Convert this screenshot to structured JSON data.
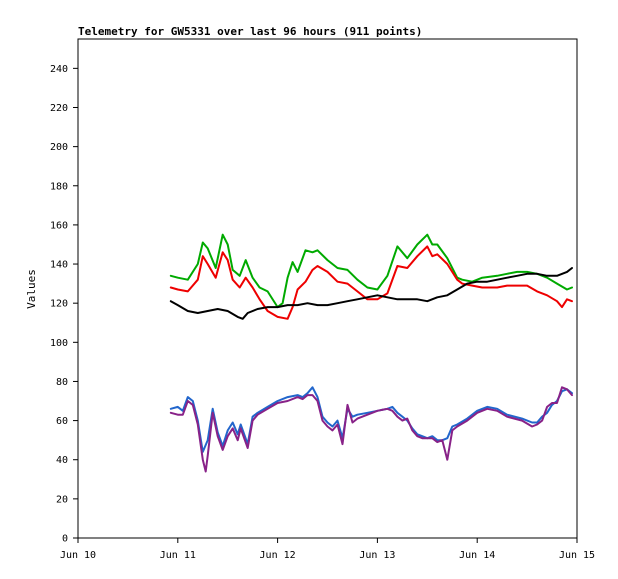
{
  "chart_data": {
    "type": "line",
    "title": "Telemetry for GW5331 over last 96 hours (911 points)",
    "xlabel": "",
    "ylabel": "Values",
    "x_ticks": [
      "Jun 10",
      "Jun 11",
      "Jun 12",
      "Jun 13",
      "Jun 14",
      "Jun 15"
    ],
    "xlim": [
      0,
      5
    ],
    "ylim": [
      0,
      255
    ],
    "y_ticks": [
      0,
      20,
      40,
      60,
      80,
      100,
      120,
      140,
      160,
      180,
      200,
      220,
      240
    ],
    "grid": false,
    "legend": "none",
    "series": [
      {
        "color": "#00aa00",
        "x": [
          0.93,
          1.0,
          1.1,
          1.2,
          1.25,
          1.3,
          1.38,
          1.45,
          1.5,
          1.55,
          1.62,
          1.68,
          1.75,
          1.82,
          1.9,
          2.0,
          2.05,
          2.1,
          2.15,
          2.2,
          2.28,
          2.35,
          2.4,
          2.5,
          2.6,
          2.7,
          2.8,
          2.9,
          3.0,
          3.1,
          3.2,
          3.3,
          3.4,
          3.5,
          3.55,
          3.6,
          3.7,
          3.8,
          3.85,
          3.95,
          4.05,
          4.2,
          4.3,
          4.4,
          4.5,
          4.6,
          4.7,
          4.8,
          4.9,
          4.95
        ],
        "y": [
          134,
          133,
          132,
          140,
          151,
          148,
          138,
          155,
          150,
          137,
          134,
          142,
          133,
          128,
          126,
          118,
          120,
          133,
          141,
          136,
          147,
          146,
          147,
          142,
          138,
          137,
          132,
          128,
          127,
          134,
          149,
          143,
          150,
          155,
          150,
          150,
          143,
          133,
          132,
          131,
          133,
          134,
          135,
          136,
          136,
          135,
          133,
          130,
          127,
          128
        ]
      },
      {
        "color": "#ee0000",
        "x": [
          0.93,
          1.0,
          1.1,
          1.2,
          1.25,
          1.3,
          1.38,
          1.45,
          1.5,
          1.55,
          1.62,
          1.68,
          1.75,
          1.82,
          1.9,
          2.0,
          2.1,
          2.15,
          2.2,
          2.28,
          2.35,
          2.4,
          2.5,
          2.6,
          2.7,
          2.8,
          2.9,
          3.0,
          3.1,
          3.2,
          3.3,
          3.4,
          3.5,
          3.55,
          3.6,
          3.7,
          3.8,
          3.85,
          3.95,
          4.05,
          4.2,
          4.3,
          4.4,
          4.5,
          4.6,
          4.7,
          4.8,
          4.85,
          4.9,
          4.95
        ],
        "y": [
          128,
          127,
          126,
          132,
          144,
          140,
          133,
          146,
          142,
          132,
          128,
          133,
          128,
          122,
          116,
          113,
          112,
          118,
          127,
          131,
          137,
          139,
          136,
          131,
          130,
          126,
          122,
          122,
          125,
          139,
          138,
          144,
          149,
          144,
          145,
          140,
          132,
          130,
          129,
          128,
          128,
          129,
          129,
          129,
          126,
          124,
          121,
          118,
          122,
          121
        ]
      },
      {
        "color": "#000000",
        "x": [
          0.93,
          1.0,
          1.1,
          1.2,
          1.3,
          1.4,
          1.5,
          1.6,
          1.65,
          1.7,
          1.8,
          1.9,
          2.0,
          2.1,
          2.2,
          2.3,
          2.4,
          2.5,
          2.6,
          2.7,
          2.8,
          2.9,
          3.0,
          3.1,
          3.2,
          3.3,
          3.4,
          3.5,
          3.6,
          3.7,
          3.8,
          3.9,
          4.0,
          4.1,
          4.2,
          4.3,
          4.4,
          4.5,
          4.6,
          4.7,
          4.8,
          4.9,
          4.95
        ],
        "y": [
          121,
          119,
          116,
          115,
          116,
          117,
          116,
          113,
          112,
          115,
          117,
          118,
          118,
          119,
          119,
          120,
          119,
          119,
          120,
          121,
          122,
          123,
          124,
          123,
          122,
          122,
          122,
          121,
          123,
          124,
          127,
          130,
          131,
          131,
          132,
          133,
          134,
          135,
          135,
          134,
          134,
          136,
          138
        ]
      },
      {
        "color": "#2266cc",
        "x": [
          0.93,
          1.0,
          1.05,
          1.1,
          1.15,
          1.2,
          1.25,
          1.3,
          1.35,
          1.4,
          1.45,
          1.5,
          1.55,
          1.6,
          1.63,
          1.7,
          1.75,
          1.8,
          1.9,
          2.0,
          2.1,
          2.2,
          2.25,
          2.3,
          2.35,
          2.4,
          2.45,
          2.5,
          2.55,
          2.6,
          2.65,
          2.7,
          2.75,
          2.8,
          2.9,
          3.0,
          3.1,
          3.15,
          3.2,
          3.25,
          3.3,
          3.35,
          3.4,
          3.45,
          3.5,
          3.55,
          3.6,
          3.65,
          3.7,
          3.75,
          3.8,
          3.9,
          4.0,
          4.1,
          4.2,
          4.3,
          4.45,
          4.55,
          4.6,
          4.65,
          4.7,
          4.75,
          4.8,
          4.85,
          4.9,
          4.95
        ],
        "y": [
          66,
          67,
          65,
          72,
          70,
          60,
          44,
          50,
          66,
          54,
          47,
          55,
          59,
          53,
          58,
          48,
          62,
          64,
          67,
          70,
          72,
          73,
          72,
          74,
          77,
          72,
          62,
          59,
          57,
          60,
          51,
          66,
          62,
          63,
          64,
          65,
          66,
          67,
          64,
          62,
          60,
          56,
          53,
          52,
          51,
          52,
          50,
          50,
          51,
          57,
          58,
          61,
          65,
          67,
          66,
          63,
          61,
          59,
          59,
          62,
          64,
          68,
          70,
          75,
          76,
          74
        ]
      },
      {
        "color": "#882288",
        "x": [
          0.93,
          1.0,
          1.05,
          1.1,
          1.15,
          1.2,
          1.25,
          1.28,
          1.3,
          1.35,
          1.4,
          1.45,
          1.5,
          1.55,
          1.6,
          1.63,
          1.7,
          1.75,
          1.8,
          1.9,
          2.0,
          2.1,
          2.2,
          2.25,
          2.3,
          2.35,
          2.4,
          2.45,
          2.5,
          2.55,
          2.6,
          2.65,
          2.7,
          2.75,
          2.8,
          2.9,
          3.0,
          3.1,
          3.15,
          3.2,
          3.25,
          3.3,
          3.35,
          3.4,
          3.45,
          3.5,
          3.55,
          3.6,
          3.65,
          3.7,
          3.75,
          3.8,
          3.9,
          4.0,
          4.1,
          4.2,
          4.3,
          4.45,
          4.55,
          4.6,
          4.65,
          4.7,
          4.75,
          4.8,
          4.85,
          4.9,
          4.95
        ],
        "y": [
          64,
          63,
          63,
          70,
          68,
          58,
          40,
          34,
          42,
          64,
          52,
          45,
          52,
          56,
          50,
          56,
          46,
          60,
          63,
          66,
          69,
          70,
          72,
          71,
          73,
          73,
          70,
          60,
          57,
          55,
          58,
          48,
          68,
          59,
          61,
          63,
          65,
          66,
          65,
          62,
          60,
          61,
          55,
          52,
          51,
          51,
          51,
          49,
          50,
          40,
          55,
          57,
          60,
          64,
          66,
          65,
          62,
          60,
          57,
          58,
          60,
          67,
          69,
          69,
          77,
          76,
          73
        ]
      }
    ]
  }
}
